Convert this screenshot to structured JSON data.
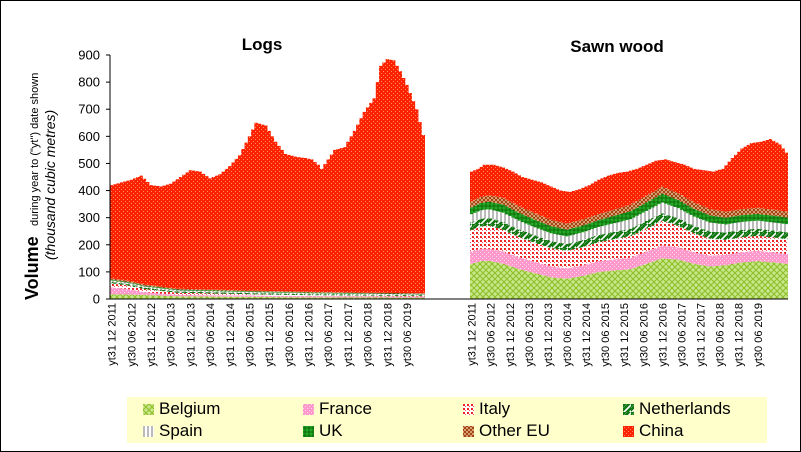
{
  "chart_data": {
    "type": "area",
    "stacked": true,
    "ylabel_main": "Volume",
    "ylabel_sub": "during year to (\"yt\") date shown",
    "ylabel_unit": "(thousand cubic metres)",
    "ylim": [
      0,
      900
    ],
    "yticks": [
      0,
      100,
      200,
      300,
      400,
      500,
      600,
      700,
      800,
      900
    ],
    "x_tick_labels": [
      "yt31 12 2011",
      "yt30 06 2012",
      "yt31 12 2012",
      "yt30 06 2013",
      "yt31 12 2013",
      "yt30 06 2014",
      "yt31 12 2014",
      "yt30 06 2015",
      "yt31 12 2015",
      "yt30 06 2016",
      "yt31 12 2016",
      "yt30 06 2017",
      "yt31 12 2017",
      "yt30 06 2018",
      "yt31 12 2018",
      "yt30 06 2019"
    ],
    "grid": false,
    "legend_position": "bottom",
    "series_order": [
      "Belgium",
      "France",
      "Italy",
      "Netherlands",
      "Spain",
      "UK",
      "Other EU",
      "China"
    ],
    "colors": {
      "Belgium": "#99cc33",
      "France": "#ff99cc",
      "Italy": "#ee2222",
      "Netherlands": "#117711",
      "Spain": "#bbbbbb",
      "UK": "#22aa22",
      "Other EU": "#993300",
      "China": "#ff2200"
    },
    "panels": [
      {
        "title": "Logs",
        "approx_total_anchors": [
          [
            0,
            420
          ],
          [
            3,
            430
          ],
          [
            6,
            440
          ],
          [
            9,
            455
          ],
          [
            12,
            420
          ],
          [
            15,
            415
          ],
          [
            18,
            425
          ],
          [
            21,
            450
          ],
          [
            24,
            475
          ],
          [
            27,
            470
          ],
          [
            30,
            445
          ],
          [
            33,
            460
          ],
          [
            36,
            490
          ],
          [
            39,
            530
          ],
          [
            42,
            600
          ],
          [
            44,
            650
          ],
          [
            47,
            640
          ],
          [
            50,
            580
          ],
          [
            53,
            535
          ],
          [
            56,
            525
          ],
          [
            59,
            520
          ],
          [
            61,
            515
          ],
          [
            63,
            495
          ],
          [
            64,
            480
          ],
          [
            66,
            515
          ],
          [
            68,
            550
          ],
          [
            71,
            560
          ],
          [
            74,
            620
          ],
          [
            77,
            690
          ],
          [
            80,
            740
          ],
          [
            82,
            860
          ],
          [
            84,
            885
          ],
          [
            86,
            880
          ],
          [
            88,
            840
          ],
          [
            90,
            790
          ],
          [
            93,
            700
          ],
          [
            95,
            605
          ]
        ],
        "series_anchors": {
          "Belgium": [
            [
              0,
              18
            ],
            [
              10,
              15
            ],
            [
              20,
              10
            ],
            [
              40,
              8
            ],
            [
              60,
              6
            ],
            [
              95,
              5
            ]
          ],
          "France": [
            [
              0,
              25
            ],
            [
              5,
              20
            ],
            [
              10,
              10
            ],
            [
              20,
              5
            ],
            [
              40,
              5
            ],
            [
              60,
              5
            ],
            [
              95,
              4
            ]
          ],
          "Italy": [
            [
              0,
              15
            ],
            [
              10,
              12
            ],
            [
              20,
              8
            ],
            [
              40,
              5
            ],
            [
              60,
              3
            ],
            [
              95,
              2
            ]
          ],
          "Netherlands": [
            [
              0,
              5
            ],
            [
              95,
              3
            ]
          ],
          "Spain": [
            [
              0,
              5
            ],
            [
              95,
              3
            ]
          ],
          "UK": [
            [
              0,
              3
            ],
            [
              95,
              2
            ]
          ],
          "Other EU": [
            [
              0,
              5
            ],
            [
              20,
              3
            ],
            [
              95,
              2
            ]
          ]
        }
      },
      {
        "title": "Sawn wood",
        "approx_total_anchors": [
          [
            0,
            470
          ],
          [
            2,
            480
          ],
          [
            4,
            495
          ],
          [
            7,
            495
          ],
          [
            10,
            485
          ],
          [
            13,
            470
          ],
          [
            16,
            450
          ],
          [
            19,
            440
          ],
          [
            22,
            430
          ],
          [
            25,
            415
          ],
          [
            28,
            400
          ],
          [
            31,
            395
          ],
          [
            34,
            405
          ],
          [
            37,
            420
          ],
          [
            40,
            440
          ],
          [
            43,
            455
          ],
          [
            46,
            465
          ],
          [
            49,
            470
          ],
          [
            52,
            480
          ],
          [
            55,
            495
          ],
          [
            58,
            510
          ],
          [
            61,
            515
          ],
          [
            64,
            505
          ],
          [
            67,
            495
          ],
          [
            70,
            480
          ],
          [
            73,
            475
          ],
          [
            76,
            470
          ],
          [
            79,
            480
          ],
          [
            82,
            520
          ],
          [
            85,
            555
          ],
          [
            88,
            575
          ],
          [
            91,
            580
          ],
          [
            94,
            590
          ],
          [
            97,
            570
          ],
          [
            99,
            540
          ]
        ],
        "series_anchors": {
          "Belgium": [
            [
              0,
              130
            ],
            [
              3,
              140
            ],
            [
              6,
              140
            ],
            [
              10,
              130
            ],
            [
              15,
              110
            ],
            [
              20,
              95
            ],
            [
              25,
              80
            ],
            [
              30,
              75
            ],
            [
              35,
              85
            ],
            [
              40,
              100
            ],
            [
              45,
              105
            ],
            [
              50,
              110
            ],
            [
              55,
              130
            ],
            [
              60,
              150
            ],
            [
              65,
              145
            ],
            [
              70,
              130
            ],
            [
              75,
              120
            ],
            [
              80,
              125
            ],
            [
              85,
              135
            ],
            [
              90,
              140
            ],
            [
              95,
              135
            ],
            [
              99,
              130
            ]
          ],
          "France": [
            [
              0,
              45
            ],
            [
              10,
              45
            ],
            [
              20,
              42
            ],
            [
              30,
              38
            ],
            [
              40,
              40
            ],
            [
              50,
              42
            ],
            [
              55,
              45
            ],
            [
              60,
              48
            ],
            [
              70,
              42
            ],
            [
              80,
              38
            ],
            [
              90,
              38
            ],
            [
              99,
              36
            ]
          ],
          "Italy": [
            [
              0,
              80
            ],
            [
              5,
              85
            ],
            [
              10,
              80
            ],
            [
              20,
              70
            ],
            [
              30,
              65
            ],
            [
              40,
              70
            ],
            [
              50,
              80
            ],
            [
              60,
              90
            ],
            [
              70,
              70
            ],
            [
              80,
              55
            ],
            [
              90,
              55
            ],
            [
              99,
              55
            ]
          ],
          "Netherlands": [
            [
              0,
              28
            ],
            [
              10,
              28
            ],
            [
              20,
              27
            ],
            [
              30,
              25
            ],
            [
              40,
              26
            ],
            [
              50,
              27
            ],
            [
              60,
              28
            ],
            [
              70,
              27
            ],
            [
              80,
              27
            ],
            [
              90,
              26
            ],
            [
              99,
              25
            ]
          ],
          "Spain": [
            [
              0,
              30
            ],
            [
              10,
              35
            ],
            [
              20,
              30
            ],
            [
              30,
              28
            ],
            [
              40,
              30
            ],
            [
              50,
              35
            ],
            [
              60,
              40
            ],
            [
              70,
              35
            ],
            [
              80,
              30
            ],
            [
              90,
              30
            ],
            [
              99,
              30
            ]
          ],
          "UK": [
            [
              0,
              25
            ],
            [
              10,
              30
            ],
            [
              20,
              28
            ],
            [
              30,
              25
            ],
            [
              40,
              25
            ],
            [
              50,
              30
            ],
            [
              60,
              32
            ],
            [
              70,
              28
            ],
            [
              80,
              25
            ],
            [
              90,
              25
            ],
            [
              99,
              25
            ]
          ],
          "Other EU": [
            [
              0,
              22
            ],
            [
              10,
              25
            ],
            [
              20,
              24
            ],
            [
              30,
              22
            ],
            [
              40,
              22
            ],
            [
              50,
              24
            ],
            [
              60,
              26
            ],
            [
              70,
              24
            ],
            [
              80,
              22
            ],
            [
              90,
              22
            ],
            [
              99,
              22
            ]
          ]
        }
      }
    ]
  }
}
